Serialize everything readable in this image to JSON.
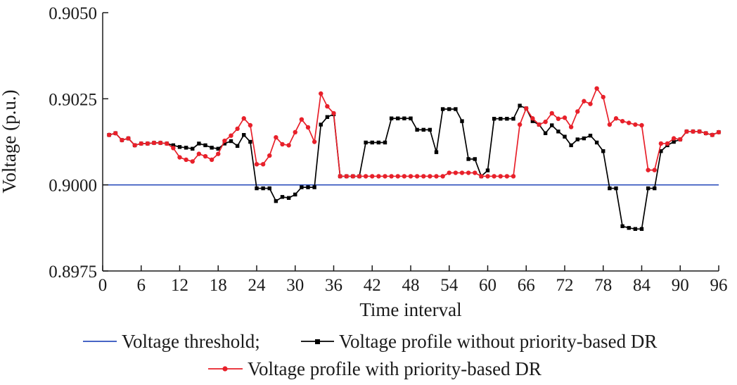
{
  "chart_data": {
    "type": "line",
    "title": "",
    "xlabel": "Time interval",
    "ylabel": "Voltage (p.u.)",
    "xlim": [
      0,
      96
    ],
    "ylim": [
      0.8975,
      0.905
    ],
    "xticks": [
      0,
      6,
      12,
      18,
      24,
      30,
      36,
      42,
      48,
      54,
      60,
      66,
      72,
      78,
      84,
      90,
      96
    ],
    "xtick_labels": [
      "0",
      "6",
      "12",
      "18",
      "24",
      "30",
      "36",
      "42",
      "48",
      "54",
      "60",
      "66",
      "72",
      "78",
      "84",
      "90",
      "96"
    ],
    "yticks": [
      0.8975,
      0.9,
      0.9025,
      0.905
    ],
    "ytick_labels": [
      "0.8975",
      "0.9000",
      "0.9025",
      "0.9050"
    ],
    "grid": false,
    "legend": [
      {
        "label": "Voltage threshold;",
        "color": "#2e4fbd",
        "marker": "none"
      },
      {
        "label": "Voltage profile without priority-based DR",
        "color": "#000000",
        "marker": "square"
      },
      {
        "label": "Voltage profile with priority-based DR",
        "color": "#e8202a",
        "marker": "circle"
      }
    ],
    "series": [
      {
        "name": "Voltage threshold",
        "color": "#2e4fbd",
        "marker": "none",
        "x": [
          0,
          96
        ],
        "values": [
          0.9,
          0.9
        ]
      },
      {
        "name": "Voltage profile without priority-based DR",
        "color": "#000000",
        "marker": "square",
        "x": [
          1,
          2,
          3,
          4,
          5,
          6,
          7,
          8,
          9,
          10,
          11,
          12,
          13,
          14,
          15,
          16,
          17,
          18,
          19,
          20,
          21,
          22,
          23,
          24,
          25,
          26,
          27,
          28,
          29,
          30,
          31,
          32,
          33,
          34,
          35,
          36,
          37,
          38,
          39,
          40,
          41,
          42,
          43,
          44,
          45,
          46,
          47,
          48,
          49,
          50,
          51,
          52,
          53,
          54,
          55,
          56,
          57,
          58,
          59,
          60,
          61,
          62,
          63,
          64,
          65,
          66,
          67,
          68,
          69,
          70,
          71,
          72,
          73,
          74,
          75,
          76,
          77,
          78,
          79,
          80,
          81,
          82,
          83,
          84,
          85,
          86,
          87,
          88,
          89,
          90,
          91,
          92,
          93,
          94,
          95,
          96
        ],
        "values": [
          0.90145,
          0.9015,
          0.9013,
          0.90135,
          0.90115,
          0.9012,
          0.9012,
          0.90122,
          0.90122,
          0.9012,
          0.90115,
          0.9011,
          0.90108,
          0.90105,
          0.9012,
          0.90115,
          0.90108,
          0.90105,
          0.9012,
          0.90127,
          0.90113,
          0.90145,
          0.90125,
          0.8999,
          0.8999,
          0.8999,
          0.89953,
          0.89965,
          0.89962,
          0.89972,
          0.89993,
          0.89993,
          0.89993,
          0.90175,
          0.90197,
          0.90205,
          0.90025,
          0.90025,
          0.90025,
          0.90025,
          0.90123,
          0.90123,
          0.90123,
          0.90123,
          0.90193,
          0.90193,
          0.90193,
          0.90193,
          0.9016,
          0.9016,
          0.9016,
          0.90095,
          0.9022,
          0.9022,
          0.9022,
          0.90185,
          0.90075,
          0.90075,
          0.90025,
          0.90042,
          0.90192,
          0.90192,
          0.90192,
          0.90192,
          0.9023,
          0.90222,
          0.90185,
          0.90175,
          0.9015,
          0.90173,
          0.90155,
          0.9014,
          0.90115,
          0.90132,
          0.90135,
          0.90143,
          0.90123,
          0.90098,
          0.8999,
          0.8999,
          0.8988,
          0.89875,
          0.89872,
          0.89872,
          0.8999,
          0.8999,
          0.90098,
          0.90115,
          0.90125,
          0.90132,
          0.90155,
          0.90155,
          0.90155,
          0.9015,
          0.90145,
          0.90153
        ]
      },
      {
        "name": "Voltage profile with priority-based DR",
        "color": "#e8202a",
        "marker": "circle",
        "x": [
          1,
          2,
          3,
          4,
          5,
          6,
          7,
          8,
          9,
          10,
          11,
          12,
          13,
          14,
          15,
          16,
          17,
          18,
          19,
          20,
          21,
          22,
          23,
          24,
          25,
          26,
          27,
          28,
          29,
          30,
          31,
          32,
          33,
          34,
          35,
          36,
          37,
          38,
          39,
          40,
          41,
          42,
          43,
          44,
          45,
          46,
          47,
          48,
          49,
          50,
          51,
          52,
          53,
          54,
          55,
          56,
          57,
          58,
          59,
          60,
          61,
          62,
          63,
          64,
          65,
          66,
          67,
          68,
          69,
          70,
          71,
          72,
          73,
          74,
          75,
          76,
          77,
          78,
          79,
          80,
          81,
          82,
          83,
          84,
          85,
          86,
          87,
          88,
          89,
          90,
          91,
          92,
          93,
          94,
          95,
          96
        ],
        "values": [
          0.90145,
          0.9015,
          0.9013,
          0.90135,
          0.90115,
          0.9012,
          0.9012,
          0.90122,
          0.90122,
          0.9012,
          0.90107,
          0.9008,
          0.90073,
          0.90068,
          0.9009,
          0.90083,
          0.90073,
          0.9009,
          0.90128,
          0.90143,
          0.90163,
          0.90193,
          0.90173,
          0.9006,
          0.9006,
          0.90085,
          0.90138,
          0.90118,
          0.90115,
          0.90153,
          0.9019,
          0.90167,
          0.90125,
          0.90265,
          0.90228,
          0.90208,
          0.90025,
          0.90025,
          0.90025,
          0.90025,
          0.90025,
          0.90025,
          0.90025,
          0.90025,
          0.90025,
          0.90025,
          0.90025,
          0.90025,
          0.90025,
          0.90025,
          0.90025,
          0.90025,
          0.90025,
          0.90035,
          0.90035,
          0.90035,
          0.90035,
          0.90035,
          0.90025,
          0.90025,
          0.90025,
          0.90025,
          0.90025,
          0.90025,
          0.90175,
          0.90222,
          0.90193,
          0.90175,
          0.90183,
          0.90208,
          0.90192,
          0.90195,
          0.90168,
          0.90213,
          0.90243,
          0.90235,
          0.9028,
          0.90255,
          0.90175,
          0.90193,
          0.90185,
          0.9018,
          0.90175,
          0.90173,
          0.90043,
          0.90043,
          0.9012,
          0.9012,
          0.90135,
          0.90132,
          0.90155,
          0.90155,
          0.90155,
          0.9015,
          0.90145,
          0.90153
        ]
      }
    ]
  }
}
